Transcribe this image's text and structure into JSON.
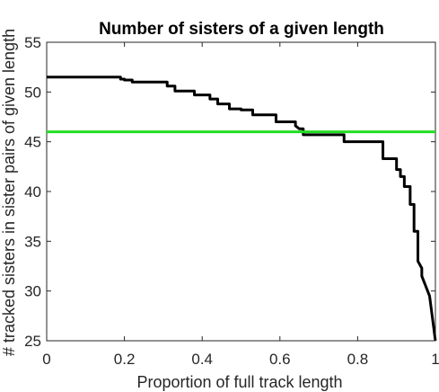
{
  "chart_data": {
    "type": "line",
    "title": "Number of sisters of a given length",
    "xlabel": "Proportion of full track length",
    "ylabel": "# tracked sisters in sister pairs of given length",
    "xlim": [
      0,
      1
    ],
    "ylim": [
      25,
      55
    ],
    "xticks": [
      "0",
      "0.2",
      "0.4",
      "0.6",
      "0.8",
      "1"
    ],
    "yticks": [
      "25",
      "30",
      "35",
      "40",
      "45",
      "50",
      "55"
    ],
    "grid": false,
    "series": [
      {
        "color": "#000000",
        "x": [
          0,
          0.19,
          0.19,
          0.2,
          0.2,
          0.22,
          0.22,
          0.31,
          0.31,
          0.33,
          0.33,
          0.38,
          0.38,
          0.42,
          0.42,
          0.44,
          0.44,
          0.47,
          0.47,
          0.5,
          0.5,
          0.53,
          0.53,
          0.59,
          0.59,
          0.64,
          0.64,
          0.65,
          0.66,
          0.66,
          0.765,
          0.765,
          0.865,
          0.865,
          0.9,
          0.9,
          0.91,
          0.91,
          0.92,
          0.92,
          0.935,
          0.935,
          0.945,
          0.945,
          0.955,
          0.955,
          0.965,
          0.965,
          0.97,
          0.975,
          0.98,
          0.985,
          0.99,
          0.995,
          1.0
        ],
        "y": [
          51.5,
          51.5,
          51.3,
          51.3,
          51.2,
          51.2,
          51.0,
          51.0,
          50.6,
          50.6,
          50.1,
          50.1,
          49.7,
          49.7,
          49.3,
          49.3,
          48.8,
          48.8,
          48.3,
          48.3,
          48.2,
          48.2,
          47.7,
          47.7,
          47.0,
          47.0,
          46.6,
          46.3,
          46.3,
          45.7,
          45.7,
          45.0,
          45.0,
          43.3,
          43.3,
          42.2,
          42.2,
          41.5,
          41.5,
          40.5,
          40.5,
          38.7,
          38.7,
          36.0,
          36.0,
          33.0,
          32.3,
          31.5,
          31.0,
          30.5,
          30.0,
          29.5,
          28.0,
          26.5,
          25.0
        ]
      },
      {
        "color": "#22dd22",
        "x": [
          0,
          1
        ],
        "y": [
          46,
          46
        ]
      }
    ]
  }
}
